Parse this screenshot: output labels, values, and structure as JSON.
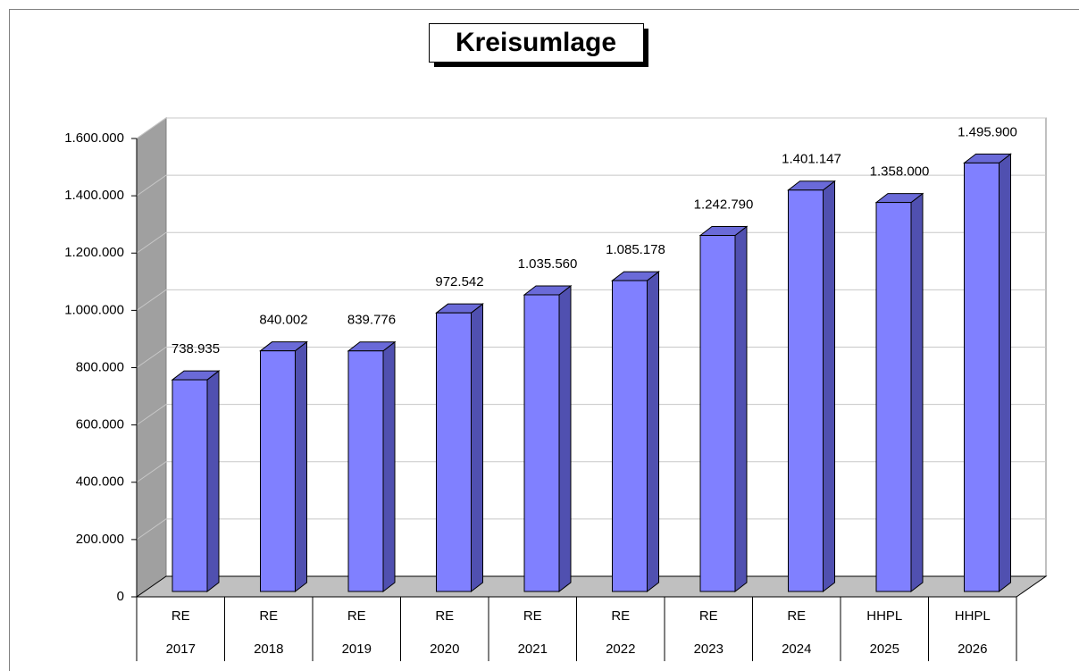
{
  "chart_data": {
    "type": "bar3d",
    "title": "Kreisumlage",
    "categories": [
      [
        "RE",
        "2017"
      ],
      [
        "RE",
        "2018"
      ],
      [
        "RE",
        "2019"
      ],
      [
        "RE",
        "2020"
      ],
      [
        "RE",
        "2021"
      ],
      [
        "RE",
        "2022"
      ],
      [
        "RE",
        "2023"
      ],
      [
        "RE",
        "2024"
      ],
      [
        "HHPL",
        "2025"
      ],
      [
        "HHPL",
        "2026"
      ]
    ],
    "values": [
      738935,
      840002,
      839776,
      972542,
      1035560,
      1085178,
      1242790,
      1401147,
      1358000,
      1495900
    ],
    "value_labels": [
      "738.935",
      "840.002",
      "839.776",
      "972.542",
      "1.035.560",
      "1.085.178",
      "1.242.790",
      "1.401.147",
      "1.358.000",
      "1.495.900"
    ],
    "color": "#8080ff",
    "ylim": [
      0,
      1600000
    ],
    "yticks": [
      0,
      {
        "value": 200000,
        "label": "200.000"
      },
      {
        "value": 400000,
        "label": "400.000"
      },
      {
        "value": 600000,
        "label": "600.000"
      },
      {
        "value": 800000,
        "label": "800.000"
      },
      {
        "value": 1000000,
        "label": "1.000.000"
      },
      {
        "value": 1200000,
        "label": "1.200.000"
      },
      {
        "value": 1400000,
        "label": "1.400.000"
      },
      {
        "value": 1600000,
        "label": "1.600.000"
      }
    ],
    "grid": true
  }
}
